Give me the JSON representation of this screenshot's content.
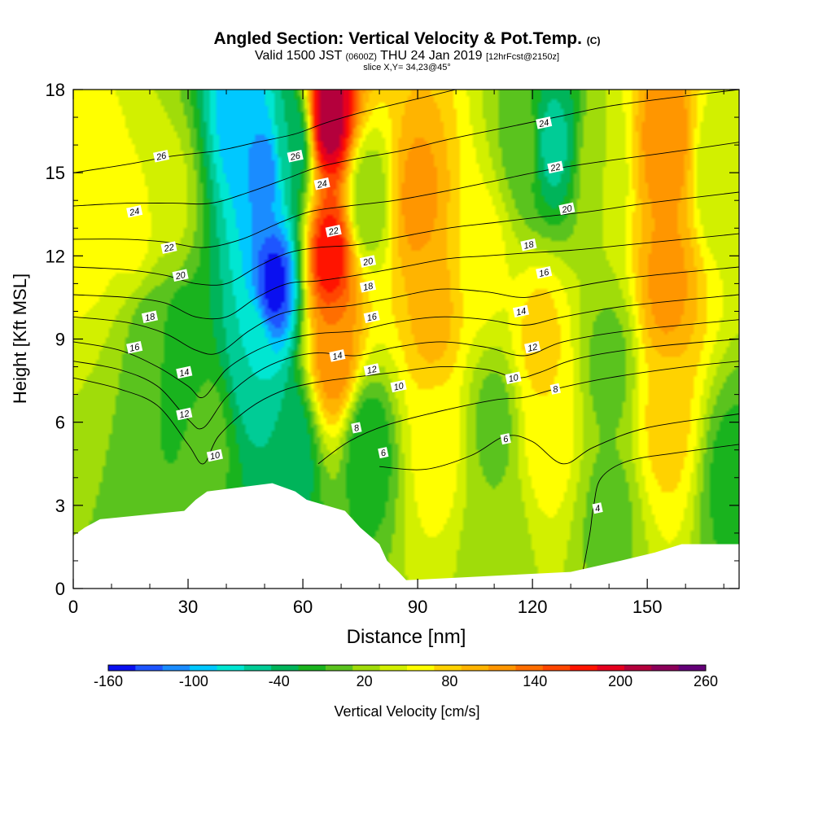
{
  "header": {
    "title": "Angled Section: Vertical Velocity & Pot.Temp.",
    "title_tag": "(C)",
    "valid_prefix": "Valid 1500 JST",
    "valid_utc": "(0600Z)",
    "valid_date": "THU 24 Jan 2019",
    "forecast": "[12hrFcst@2150z]",
    "slice": "slice X,Y= 34,23@45°"
  },
  "chart_data": {
    "type": "heatmap",
    "xlabel": "Distance [nm]",
    "ylabel": "Height [Kft MSL]",
    "xlim": [
      0,
      174
    ],
    "ylim": [
      0,
      18
    ],
    "x_ticks": [
      0,
      30,
      60,
      90,
      120,
      150
    ],
    "y_ticks": [
      0,
      3,
      6,
      9,
      12,
      15,
      18
    ],
    "colorbar": {
      "label": "Vertical Velocity [cm/s]",
      "min": -160,
      "max": 260,
      "step": 20,
      "tick_labels": [
        -160,
        -100,
        -40,
        20,
        80,
        140,
        200,
        260
      ],
      "colors": [
        "#0a10f0",
        "#1e55ff",
        "#1a8cff",
        "#00c8ff",
        "#00e6d2",
        "#00cc96",
        "#00b45a",
        "#19b31e",
        "#5ac31e",
        "#a0dc0a",
        "#d2f000",
        "#ffff00",
        "#ffd200",
        "#ffb400",
        "#ff9600",
        "#ff6e00",
        "#ff4600",
        "#ff1400",
        "#e6001e",
        "#b4003c",
        "#8c005a",
        "#640078"
      ]
    },
    "velocity_centers": [
      {
        "x": 5,
        "y": 14,
        "value": 80
      },
      {
        "x": 16,
        "y": 13,
        "value": 70
      },
      {
        "x": 25,
        "y": 14,
        "value": 50
      },
      {
        "x": 20,
        "y": 9,
        "value": 10
      },
      {
        "x": 28,
        "y": 8.5,
        "value": -20
      },
      {
        "x": 35,
        "y": 5.5,
        "value": 10
      },
      {
        "x": 47,
        "y": 8.5,
        "value": -60
      },
      {
        "x": 44,
        "y": 17,
        "value": -100
      },
      {
        "x": 50,
        "y": 15,
        "value": -110
      },
      {
        "x": 52.5,
        "y": 11,
        "value": -150
      },
      {
        "x": 57,
        "y": 16,
        "value": -40
      },
      {
        "x": 57,
        "y": 5,
        "value": -40
      },
      {
        "x": 67,
        "y": 17,
        "value": 240
      },
      {
        "x": 67,
        "y": 12,
        "value": 200
      },
      {
        "x": 68,
        "y": 8.5,
        "value": 140
      },
      {
        "x": 77,
        "y": 14,
        "value": 20
      },
      {
        "x": 77,
        "y": 5,
        "value": -20
      },
      {
        "x": 90,
        "y": 14,
        "value": 130
      },
      {
        "x": 94,
        "y": 10,
        "value": 110
      },
      {
        "x": 95,
        "y": 5,
        "value": 70
      },
      {
        "x": 107,
        "y": 12,
        "value": 70
      },
      {
        "x": 110,
        "y": 6,
        "value": 10
      },
      {
        "x": 110,
        "y": 1.5,
        "value": 20
      },
      {
        "x": 118,
        "y": 16,
        "value": 10
      },
      {
        "x": 125,
        "y": 16,
        "value": -50
      },
      {
        "x": 122,
        "y": 9,
        "value": 90
      },
      {
        "x": 124,
        "y": 6,
        "value": 80
      },
      {
        "x": 138,
        "y": 15,
        "value": 40
      },
      {
        "x": 140,
        "y": 8,
        "value": 10
      },
      {
        "x": 140,
        "y": 2.5,
        "value": 10
      },
      {
        "x": 155,
        "y": 16,
        "value": 140
      },
      {
        "x": 155,
        "y": 11,
        "value": 130
      },
      {
        "x": 155,
        "y": 6,
        "value": 90
      },
      {
        "x": 168,
        "y": 15,
        "value": 40
      },
      {
        "x": 172,
        "y": 4,
        "value": -10
      }
    ],
    "terrain": [
      {
        "x": 0,
        "height": 1.9
      },
      {
        "x": 3,
        "height": 2.2
      },
      {
        "x": 7,
        "height": 2.5
      },
      {
        "x": 29,
        "height": 2.8
      },
      {
        "x": 32,
        "height": 3.2
      },
      {
        "x": 35,
        "height": 3.5
      },
      {
        "x": 52,
        "height": 3.8
      },
      {
        "x": 58,
        "height": 3.5
      },
      {
        "x": 61,
        "height": 3.2
      },
      {
        "x": 71,
        "height": 2.8
      },
      {
        "x": 75,
        "height": 2.2
      },
      {
        "x": 80,
        "height": 1.6
      },
      {
        "x": 82,
        "height": 1.0
      },
      {
        "x": 85,
        "height": 0.6
      },
      {
        "x": 87,
        "height": 0.3
      },
      {
        "x": 130,
        "height": 0.6
      },
      {
        "x": 143,
        "height": 1.0
      },
      {
        "x": 152,
        "height": 1.3
      },
      {
        "x": 159,
        "height": 1.6
      },
      {
        "x": 174,
        "height": 1.6
      }
    ],
    "theta_contours": [
      {
        "label": "4",
        "points": [
          [
            133,
            0.5
          ],
          [
            135,
            2.0
          ],
          [
            136,
            3.0
          ],
          [
            138,
            4.0
          ],
          [
            145,
            4.6
          ],
          [
            158,
            4.9
          ],
          [
            174,
            5.2
          ]
        ]
      },
      {
        "label": "6",
        "points": [
          [
            80,
            4.4
          ],
          [
            92,
            4.3
          ],
          [
            104,
            4.8
          ],
          [
            113,
            5.5
          ],
          [
            120,
            5.3
          ],
          [
            128,
            4.5
          ],
          [
            136,
            5.1
          ],
          [
            150,
            5.8
          ],
          [
            174,
            6.3
          ]
        ]
      },
      {
        "label": "8",
        "points": [
          [
            64,
            4.5
          ],
          [
            72,
            5.3
          ],
          [
            82,
            5.9
          ],
          [
            96,
            6.4
          ],
          [
            110,
            6.8
          ],
          [
            118,
            6.9
          ],
          [
            126,
            7.2
          ],
          [
            140,
            7.6
          ],
          [
            160,
            8.0
          ],
          [
            174,
            8.2
          ]
        ]
      },
      {
        "label": "10",
        "points": [
          [
            0,
            7.6
          ],
          [
            12,
            7.2
          ],
          [
            22,
            6.6
          ],
          [
            30,
            5.2
          ],
          [
            34,
            4.5
          ],
          [
            38,
            5.5
          ],
          [
            46,
            6.5
          ],
          [
            54,
            7.1
          ],
          [
            62,
            7.4
          ],
          [
            72,
            7.6
          ],
          [
            84,
            7.8
          ],
          [
            96,
            8.0
          ],
          [
            108,
            7.9
          ],
          [
            116,
            7.6
          ],
          [
            122,
            7.8
          ],
          [
            132,
            8.3
          ],
          [
            150,
            8.7
          ],
          [
            174,
            9.0
          ]
        ]
      },
      {
        "label": "12",
        "points": [
          [
            0,
            8.2
          ],
          [
            12,
            7.9
          ],
          [
            22,
            7.3
          ],
          [
            30,
            6.1
          ],
          [
            34,
            5.8
          ],
          [
            40,
            6.9
          ],
          [
            48,
            7.8
          ],
          [
            56,
            8.3
          ],
          [
            64,
            8.5
          ],
          [
            74,
            8.4
          ],
          [
            84,
            8.7
          ],
          [
            96,
            8.9
          ],
          [
            108,
            8.7
          ],
          [
            118,
            8.4
          ],
          [
            128,
            8.9
          ],
          [
            145,
            9.3
          ],
          [
            174,
            9.7
          ]
        ]
      },
      {
        "label": "14",
        "points": [
          [
            0,
            8.9
          ],
          [
            12,
            8.6
          ],
          [
            22,
            8.0
          ],
          [
            30,
            7.3
          ],
          [
            34,
            6.9
          ],
          [
            40,
            7.9
          ],
          [
            48,
            8.6
          ],
          [
            56,
            9.0
          ],
          [
            64,
            9.2
          ],
          [
            74,
            9.3
          ],
          [
            84,
            9.6
          ],
          [
            96,
            9.8
          ],
          [
            108,
            9.7
          ],
          [
            118,
            9.5
          ],
          [
            128,
            9.8
          ],
          [
            145,
            10.2
          ],
          [
            174,
            10.6
          ]
        ]
      },
      {
        "label": "16",
        "points": [
          [
            0,
            9.8
          ],
          [
            14,
            9.6
          ],
          [
            24,
            9.2
          ],
          [
            32,
            8.6
          ],
          [
            38,
            8.5
          ],
          [
            46,
            9.3
          ],
          [
            54,
            9.9
          ],
          [
            62,
            10.1
          ],
          [
            72,
            10.2
          ],
          [
            84,
            10.5
          ],
          [
            96,
            10.8
          ],
          [
            108,
            10.7
          ],
          [
            118,
            10.5
          ],
          [
            128,
            10.8
          ],
          [
            145,
            11.2
          ],
          [
            174,
            11.6
          ]
        ]
      },
      {
        "label": "18",
        "points": [
          [
            0,
            10.6
          ],
          [
            14,
            10.5
          ],
          [
            24,
            10.3
          ],
          [
            32,
            9.8
          ],
          [
            40,
            9.8
          ],
          [
            48,
            10.5
          ],
          [
            56,
            11.0
          ],
          [
            64,
            11.1
          ],
          [
            74,
            11.3
          ],
          [
            86,
            11.6
          ],
          [
            98,
            11.9
          ],
          [
            108,
            12.0
          ],
          [
            118,
            12.1
          ],
          [
            130,
            12.2
          ],
          [
            145,
            12.4
          ],
          [
            174,
            12.8
          ]
        ]
      },
      {
        "label": "20",
        "points": [
          [
            0,
            11.6
          ],
          [
            14,
            11.5
          ],
          [
            24,
            11.3
          ],
          [
            32,
            11.0
          ],
          [
            40,
            11.0
          ],
          [
            48,
            11.6
          ],
          [
            56,
            12.1
          ],
          [
            64,
            12.3
          ],
          [
            74,
            12.4
          ],
          [
            86,
            12.7
          ],
          [
            98,
            13.0
          ],
          [
            110,
            13.2
          ],
          [
            122,
            13.4
          ],
          [
            135,
            13.6
          ],
          [
            150,
            13.9
          ],
          [
            174,
            14.3
          ]
        ]
      },
      {
        "label": "22",
        "points": [
          [
            0,
            12.6
          ],
          [
            14,
            12.6
          ],
          [
            24,
            12.5
          ],
          [
            34,
            12.3
          ],
          [
            44,
            12.6
          ],
          [
            54,
            13.2
          ],
          [
            62,
            13.6
          ],
          [
            72,
            13.8
          ],
          [
            84,
            14.0
          ],
          [
            96,
            14.3
          ],
          [
            110,
            14.7
          ],
          [
            124,
            15.1
          ],
          [
            138,
            15.4
          ],
          [
            154,
            15.7
          ],
          [
            174,
            16.1
          ]
        ]
      },
      {
        "label": "24",
        "points": [
          [
            0,
            13.8
          ],
          [
            14,
            13.9
          ],
          [
            26,
            13.9
          ],
          [
            36,
            13.9
          ],
          [
            46,
            14.3
          ],
          [
            56,
            14.8
          ],
          [
            64,
            15.2
          ],
          [
            74,
            15.5
          ],
          [
            86,
            15.8
          ],
          [
            98,
            16.2
          ],
          [
            112,
            16.6
          ],
          [
            126,
            17.0
          ],
          [
            140,
            17.4
          ],
          [
            156,
            17.7
          ],
          [
            174,
            18.0
          ]
        ]
      },
      {
        "label": "26",
        "points": [
          [
            0,
            15.0
          ],
          [
            14,
            15.3
          ],
          [
            26,
            15.6
          ],
          [
            38,
            15.8
          ],
          [
            48,
            16.1
          ],
          [
            58,
            16.4
          ],
          [
            66,
            16.8
          ],
          [
            76,
            17.2
          ],
          [
            88,
            17.6
          ],
          [
            100,
            18.0
          ]
        ]
      }
    ],
    "contour_labels": [
      {
        "text": "26",
        "x": 23,
        "y": 15.6
      },
      {
        "text": "26",
        "x": 58,
        "y": 15.6
      },
      {
        "text": "24",
        "x": 16,
        "y": 13.6
      },
      {
        "text": "24",
        "x": 65,
        "y": 14.6
      },
      {
        "text": "24",
        "x": 123,
        "y": 16.8
      },
      {
        "text": "22",
        "x": 25,
        "y": 12.3
      },
      {
        "text": "22",
        "x": 68,
        "y": 12.9
      },
      {
        "text": "22",
        "x": 126,
        "y": 15.2
      },
      {
        "text": "20",
        "x": 28,
        "y": 11.3
      },
      {
        "text": "20",
        "x": 77,
        "y": 11.8
      },
      {
        "text": "20",
        "x": 129,
        "y": 13.7
      },
      {
        "text": "18",
        "x": 20,
        "y": 9.8
      },
      {
        "text": "18",
        "x": 77,
        "y": 10.9
      },
      {
        "text": "18",
        "x": 119,
        "y": 12.4
      },
      {
        "text": "16",
        "x": 16,
        "y": 8.7
      },
      {
        "text": "16",
        "x": 78,
        "y": 9.8
      },
      {
        "text": "16",
        "x": 123,
        "y": 11.4
      },
      {
        "text": "14",
        "x": 29,
        "y": 7.8
      },
      {
        "text": "14",
        "x": 69,
        "y": 8.4
      },
      {
        "text": "14",
        "x": 117,
        "y": 10.0
      },
      {
        "text": "12",
        "x": 29,
        "y": 6.3
      },
      {
        "text": "12",
        "x": 78,
        "y": 7.9
      },
      {
        "text": "12",
        "x": 120,
        "y": 8.7
      },
      {
        "text": "10",
        "x": 37,
        "y": 4.8
      },
      {
        "text": "10",
        "x": 85,
        "y": 7.3
      },
      {
        "text": "10",
        "x": 115,
        "y": 7.6
      },
      {
        "text": "8",
        "x": 74,
        "y": 5.8
      },
      {
        "text": "8",
        "x": 126,
        "y": 7.2
      },
      {
        "text": "6",
        "x": 81,
        "y": 4.9
      },
      {
        "text": "6",
        "x": 113,
        "y": 5.4
      },
      {
        "text": "4",
        "x": 137,
        "y": 2.9
      }
    ]
  }
}
